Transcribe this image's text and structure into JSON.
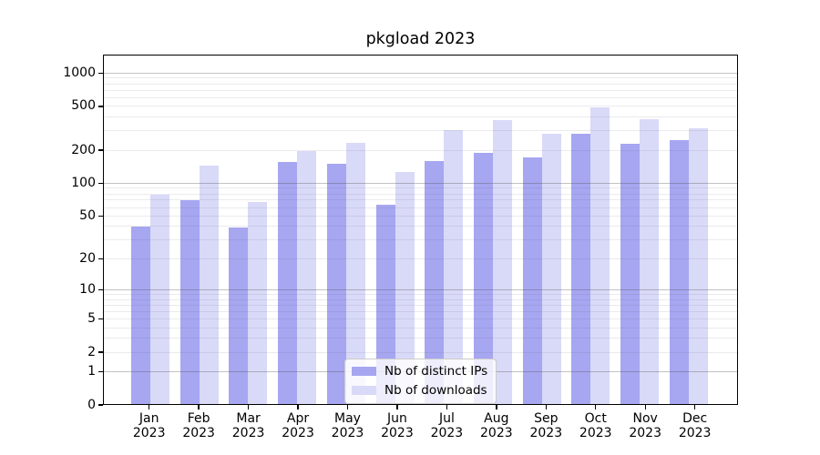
{
  "chart_data": {
    "type": "bar",
    "title": "pkgload 2023",
    "categories": [
      "Jan 2023",
      "Feb 2023",
      "Mar 2023",
      "Apr 2023",
      "May 2023",
      "Jun 2023",
      "Jul 2023",
      "Aug 2023",
      "Sep 2023",
      "Oct 2023",
      "Nov 2023",
      "Dec 2023"
    ],
    "series": [
      {
        "name": "Nb of distinct IPs",
        "color": "#a6a6f1",
        "values": [
          40,
          70,
          39,
          155,
          151,
          63,
          158,
          190,
          173,
          280,
          227,
          245
        ]
      },
      {
        "name": "Nb of downloads",
        "color": "#d9d9f8",
        "values": [
          78,
          145,
          68,
          197,
          232,
          126,
          305,
          375,
          280,
          485,
          380,
          315
        ]
      }
    ],
    "xlabel": "",
    "ylabel": "",
    "yscale": "log1p",
    "ylim": [
      0,
      1470
    ],
    "yticks": [
      0,
      1,
      2,
      5,
      10,
      20,
      50,
      100,
      200,
      500,
      1000
    ],
    "grid": {
      "major": [
        1,
        10,
        100,
        1000
      ],
      "minor": [
        2,
        3,
        4,
        5,
        6,
        7,
        8,
        9,
        20,
        30,
        40,
        50,
        60,
        70,
        80,
        90,
        200,
        300,
        400,
        500,
        600,
        700,
        800,
        900
      ]
    },
    "legend_position": "lower center",
    "frame": true
  }
}
